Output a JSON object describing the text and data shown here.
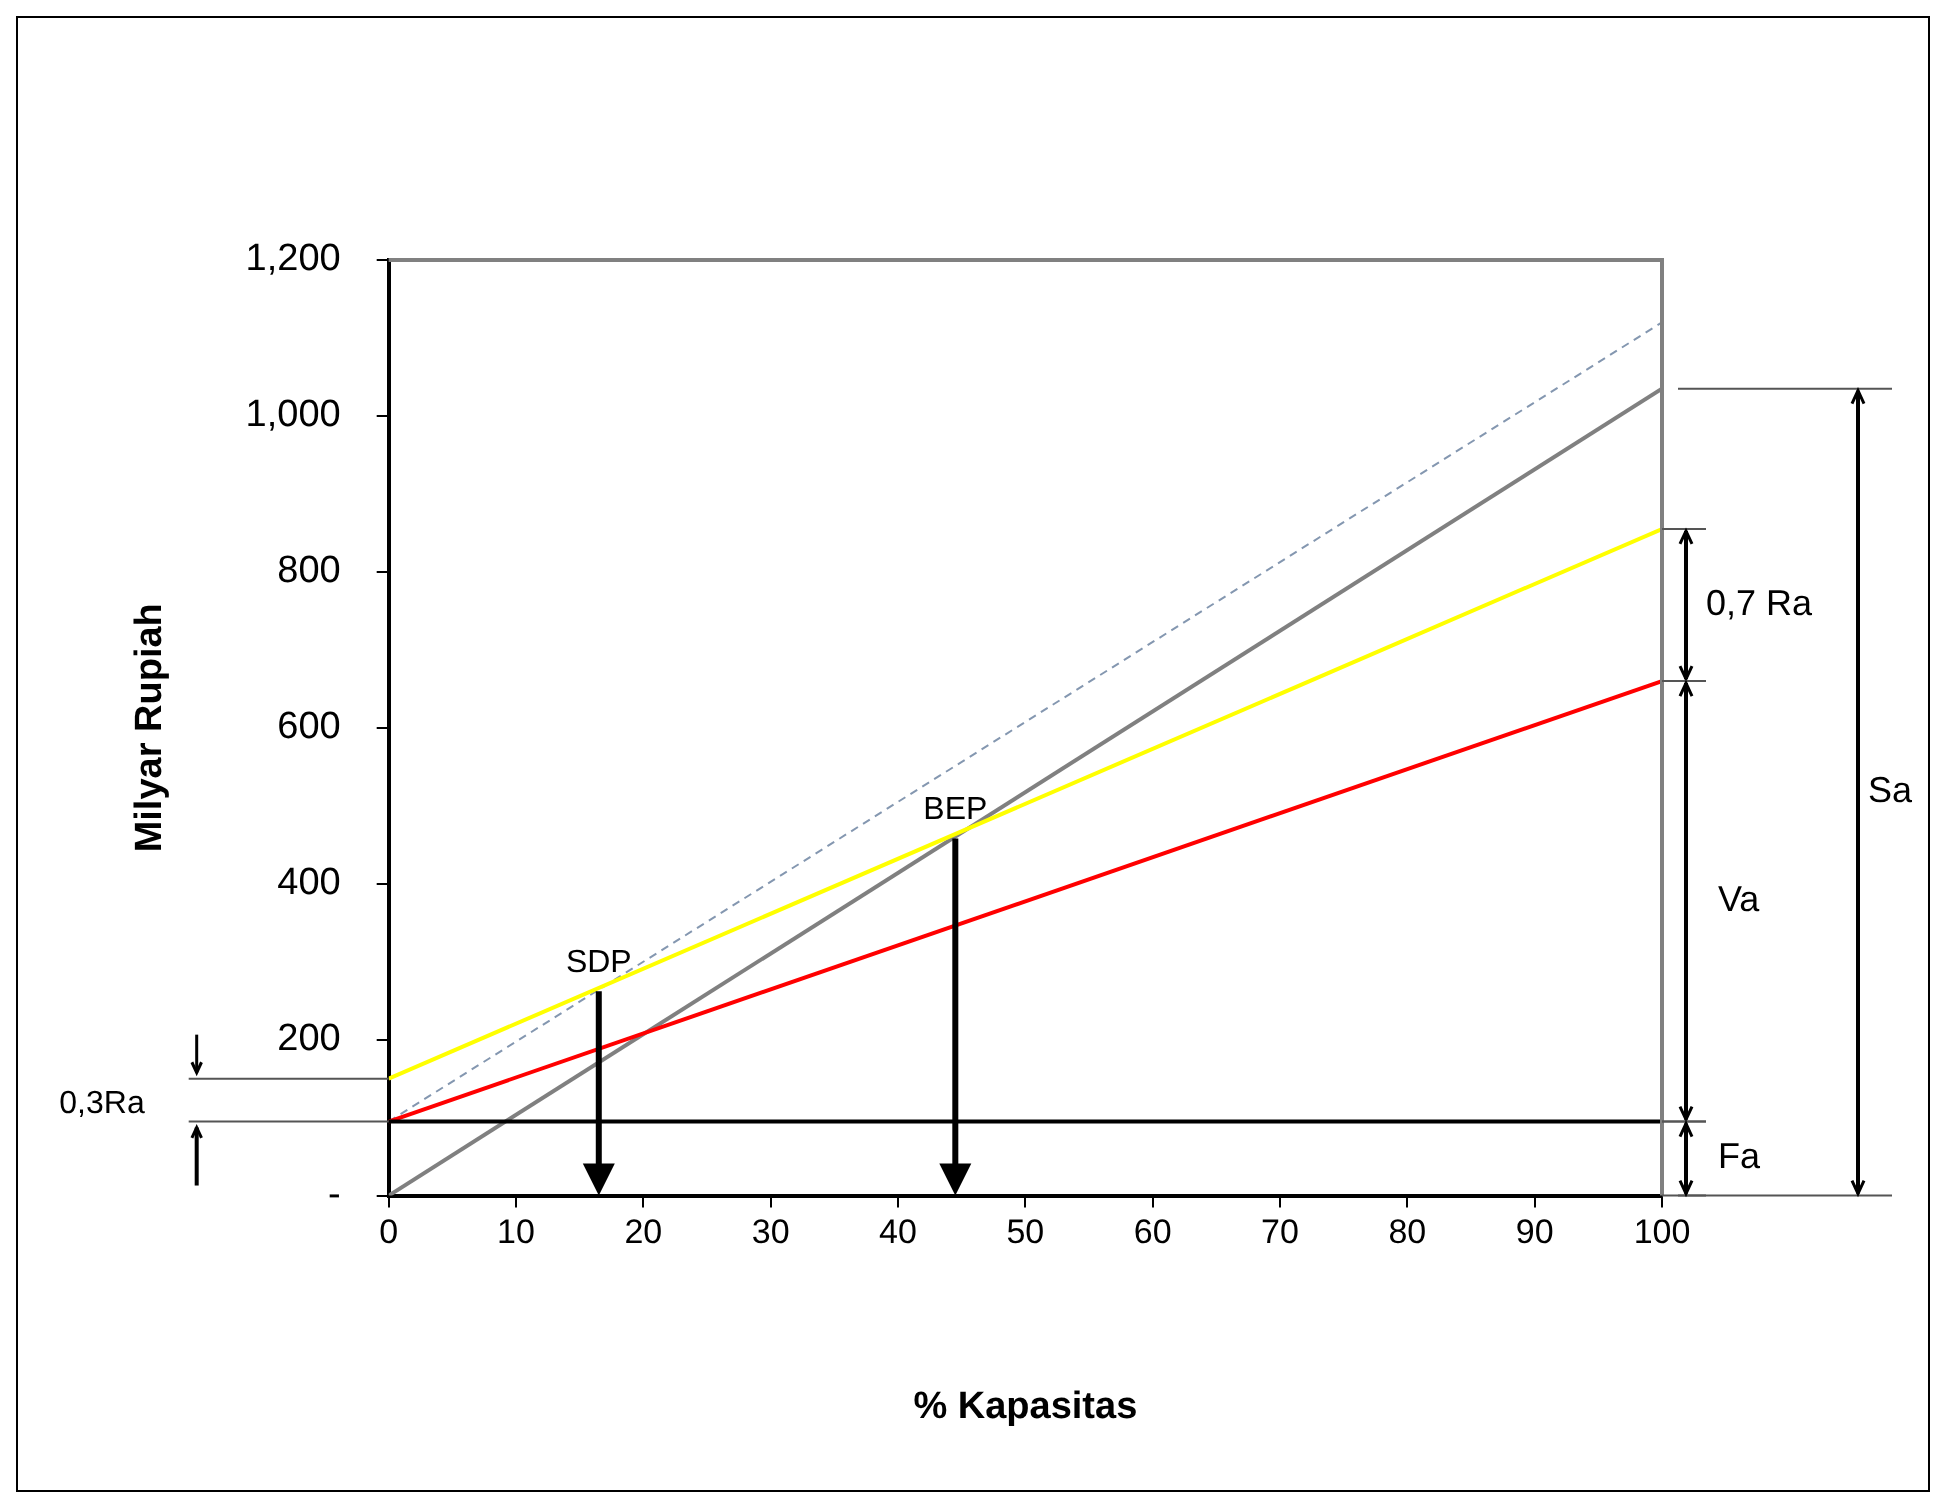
{
  "chart_data": {
    "type": "line",
    "xlabel": "% Kapasitas",
    "ylabel": "Milyar Rupiah",
    "xlim": [
      0,
      100
    ],
    "xticks": [
      0,
      10,
      20,
      30,
      40,
      50,
      60,
      70,
      80,
      90,
      100
    ],
    "ylim": [
      0,
      1200
    ],
    "yticks": [
      {
        "value": 0,
        "label": "-"
      },
      200,
      400,
      600,
      800,
      {
        "value": 1000,
        "label": "1,000"
      },
      {
        "value": 1200,
        "label": "1,200"
      }
    ],
    "grid": false,
    "legend": false,
    "marker": "none",
    "x": [
      0,
      100
    ],
    "series": [
      {
        "color": "#000000",
        "values": [
          95,
          95
        ]
      },
      {
        "color": "#ff0000",
        "values": [
          95,
          660
        ]
      },
      {
        "color": "#ffff00",
        "values": [
          150,
          855
        ]
      },
      {
        "color": "#808080",
        "values": [
          0,
          1035
        ]
      },
      {
        "color": "#8497b0",
        "values": [
          95,
          1120
        ],
        "line_style": "dashed"
      }
    ],
    "annotations": [
      {
        "text": "SDP",
        "x": 16.5,
        "y": 262
      },
      {
        "text": "BEP",
        "x": 44.5,
        "y": 458
      },
      "0,7 Ra",
      "Va",
      "Sa",
      "Fa",
      "0,3Ra"
    ]
  }
}
